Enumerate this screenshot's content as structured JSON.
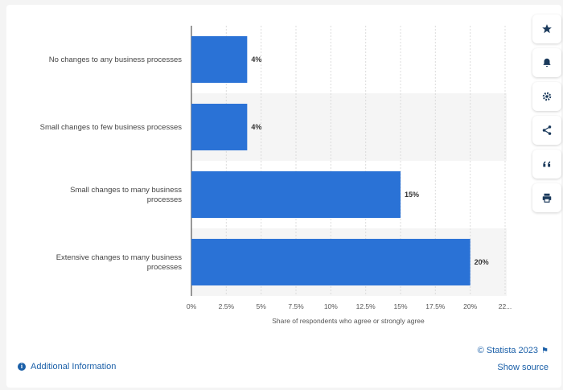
{
  "chart_data": {
    "type": "bar",
    "orientation": "horizontal",
    "categories": [
      [
        "No changes to any business processes"
      ],
      [
        "Small changes to few business processes"
      ],
      [
        "Small changes to many business",
        "processes"
      ],
      [
        "Extensive changes to many business",
        "processes"
      ]
    ],
    "values": [
      4,
      4,
      15,
      20
    ],
    "value_labels": [
      "4%",
      "4%",
      "15%",
      "20%"
    ],
    "xlabel": "Share of respondents who agree or strongly agree",
    "xlim": [
      0,
      22.5
    ],
    "xticks": [
      "0%",
      "2.5%",
      "5%",
      "7.5%",
      "10%",
      "12.5%",
      "15%",
      "17.5%",
      "20%",
      "22..."
    ],
    "bar_color": "#2a72d6",
    "band_color": "#f5f5f5",
    "grid": true
  },
  "footer": {
    "additional_info": "Additional Information",
    "copyright": "© Statista 2023",
    "show_source": "Show source"
  },
  "sidebar": {
    "items": [
      {
        "icon": "star-icon"
      },
      {
        "icon": "bell-icon"
      },
      {
        "icon": "gear-icon"
      },
      {
        "icon": "share-icon"
      },
      {
        "icon": "quote-icon"
      },
      {
        "icon": "print-icon"
      }
    ]
  },
  "accent_color": "#1a5fa8"
}
